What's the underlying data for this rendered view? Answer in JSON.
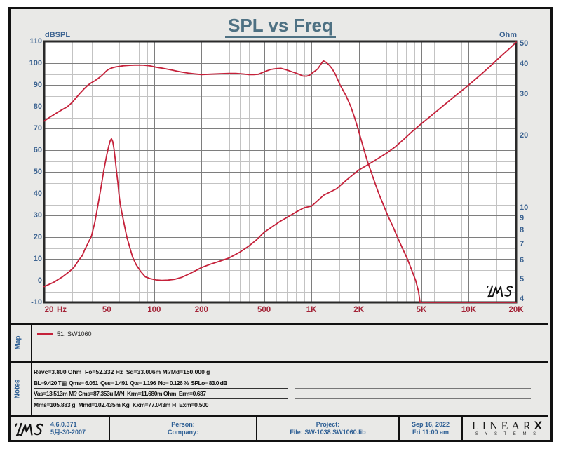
{
  "window": {
    "bg_color": "#e9e9e7",
    "border_color": "#111111",
    "plot_bg": "#ffffff"
  },
  "title": {
    "text": "SPL vs Freq",
    "color": "#4e7183"
  },
  "colors": {
    "curve_red": "#c5213a",
    "grid_major": "#7e7e7e",
    "grid_minor": "#c3c3c3",
    "axis_frame": "#2a2a2a",
    "y_label_blue": "#3c6391",
    "x_label_red": "#a32337",
    "footer_blue": "#2e5f94",
    "sidebar_blue": "#2e5f94"
  },
  "chart_data": {
    "type": "line",
    "title": "SPL vs Freq",
    "x_axis": {
      "unit": "Hz",
      "scale": "log",
      "min": 20,
      "max": 20000,
      "major_ticks": [
        20,
        50,
        100,
        200,
        500,
        1000,
        2000,
        5000,
        10000,
        20000
      ],
      "major_tick_labels": [
        "20",
        "50",
        "100",
        "200",
        "500",
        "1K",
        "2K",
        "5K",
        "10K",
        "20K"
      ],
      "unit_label": "Hz",
      "minor_ticks": [
        25,
        30,
        35,
        40,
        45,
        60,
        70,
        80,
        90,
        150,
        250,
        300,
        350,
        400,
        450,
        600,
        700,
        800,
        900,
        1500,
        2500,
        3000,
        3500,
        4000,
        4500,
        6000,
        7000,
        8000,
        9000,
        15000
      ]
    },
    "y_left_axis": {
      "label": "dBSPL",
      "scale": "linear",
      "min": -10,
      "max": 110,
      "major_step": 10,
      "minor_step": 5,
      "tick_labels": [
        "110",
        "100",
        "90",
        "80",
        "70",
        "60",
        "50",
        "40",
        "30",
        "20",
        "10",
        "0",
        "-10"
      ]
    },
    "y_right_axis": {
      "label": "Ohm",
      "scale": "log",
      "min": 4,
      "max": 50,
      "ticks": [
        50,
        40,
        30,
        20,
        10,
        9,
        8,
        7,
        6,
        5,
        4
      ],
      "tick_labels": [
        "50",
        "40",
        "30",
        "20",
        "10",
        "9",
        "8",
        "7",
        "6",
        "5",
        "4"
      ]
    },
    "grid": {
      "major_on": true,
      "minor_on": true
    },
    "legend_position": "map-section-below-chart",
    "watermark": "LMS",
    "series": [
      {
        "name": "51: SW1060 SPL",
        "axis": "left",
        "unit": "dBSPL",
        "color": "#c5213a",
        "points": [
          [
            20,
            73.4
          ],
          [
            22,
            75.4
          ],
          [
            24,
            77.1
          ],
          [
            26,
            78.6
          ],
          [
            28,
            79.9
          ],
          [
            30,
            81.8
          ],
          [
            32,
            84.2
          ],
          [
            34,
            86.4
          ],
          [
            36,
            88.3
          ],
          [
            38,
            89.9
          ],
          [
            40,
            91.0
          ],
          [
            42,
            91.9
          ],
          [
            44,
            92.9
          ],
          [
            46,
            94.0
          ],
          [
            48,
            95.3
          ],
          [
            49.5,
            96.3
          ],
          [
            51,
            97.0
          ],
          [
            52.5,
            97.45
          ],
          [
            54,
            97.8
          ],
          [
            57,
            98.25
          ],
          [
            60,
            98.5
          ],
          [
            64,
            98.8
          ],
          [
            70,
            99.0
          ],
          [
            75,
            99.1
          ],
          [
            80,
            99.1
          ],
          [
            85,
            99.05
          ],
          [
            90,
            98.9
          ],
          [
            95,
            98.7
          ],
          [
            100,
            98.3
          ],
          [
            110,
            97.8
          ],
          [
            120,
            97.3
          ],
          [
            130,
            96.8
          ],
          [
            140,
            96.3
          ],
          [
            150,
            95.9
          ],
          [
            165,
            95.4
          ],
          [
            180,
            95.05
          ],
          [
            200,
            94.75
          ],
          [
            230,
            94.95
          ],
          [
            260,
            95.1
          ],
          [
            300,
            95.3
          ],
          [
            330,
            95.3
          ],
          [
            370,
            95.0
          ],
          [
            400,
            94.7
          ],
          [
            430,
            94.7
          ],
          [
            460,
            94.9
          ],
          [
            500,
            96.0
          ],
          [
            550,
            97.1
          ],
          [
            600,
            97.5
          ],
          [
            640,
            97.6
          ],
          [
            700,
            96.8
          ],
          [
            760,
            95.9
          ],
          [
            800,
            95.4
          ],
          [
            850,
            94.6
          ],
          [
            880,
            94.1
          ],
          [
            930,
            94.0
          ],
          [
            970,
            94.4
          ],
          [
            1000,
            95.2
          ],
          [
            1050,
            96.3
          ],
          [
            1100,
            97.5
          ],
          [
            1150,
            99.6
          ],
          [
            1190,
            101.05
          ],
          [
            1240,
            100.4
          ],
          [
            1300,
            99.0
          ],
          [
            1355,
            97.4
          ],
          [
            1410,
            95.3
          ],
          [
            1520,
            90.0
          ],
          [
            1660,
            85.0
          ],
          [
            1780,
            80.0
          ],
          [
            1880,
            75.0
          ],
          [
            1975,
            70.0
          ],
          [
            2065,
            65.0
          ],
          [
            2160,
            60.0
          ],
          [
            2265,
            55.0
          ],
          [
            2395,
            50.0
          ],
          [
            2530,
            45.0
          ],
          [
            2680,
            40.0
          ],
          [
            2860,
            35.0
          ],
          [
            3050,
            30.0
          ],
          [
            3290,
            25.0
          ],
          [
            3520,
            20.0
          ],
          [
            3780,
            15.0
          ],
          [
            4070,
            10.0
          ],
          [
            4330,
            5.0
          ],
          [
            4600,
            0.0
          ],
          [
            4790,
            -5.0
          ],
          [
            4900,
            -10.0
          ],
          [
            20000,
            -10.0
          ]
        ]
      },
      {
        "name": "51: SW1060 impedance",
        "axis": "right",
        "unit": "Ohm",
        "color": "#c5213a",
        "points": [
          [
            20,
            4.66
          ],
          [
            23,
            4.86
          ],
          [
            26,
            5.11
          ],
          [
            29,
            5.4
          ],
          [
            31,
            5.63
          ],
          [
            33,
            5.99
          ],
          [
            35,
            6.3
          ],
          [
            36,
            6.6
          ],
          [
            38,
            7.1
          ],
          [
            40,
            7.6
          ],
          [
            42,
            8.7
          ],
          [
            44,
            10.3
          ],
          [
            46,
            12.2
          ],
          [
            48,
            14.5
          ],
          [
            50,
            16.7
          ],
          [
            51.5,
            18.2
          ],
          [
            52.7,
            19.2
          ],
          [
            53.6,
            19.5
          ],
          [
            54.5,
            19.0
          ],
          [
            55.5,
            17.8
          ],
          [
            56.5,
            16.1
          ],
          [
            57.7,
            14.15
          ],
          [
            58.8,
            12.74
          ],
          [
            59.7,
            11.48
          ],
          [
            60.9,
            10.33
          ],
          [
            62.8,
            9.3
          ],
          [
            64.9,
            8.36
          ],
          [
            67.1,
            7.52
          ],
          [
            70,
            6.8
          ],
          [
            73,
            6.2
          ],
          [
            77,
            5.75
          ],
          [
            82,
            5.4
          ],
          [
            88,
            5.12
          ],
          [
            95,
            5.03
          ],
          [
            103,
            4.97
          ],
          [
            112,
            4.95
          ],
          [
            122,
            4.96
          ],
          [
            135,
            5.0
          ],
          [
            150,
            5.1
          ],
          [
            170,
            5.3
          ],
          [
            200,
            5.6
          ],
          [
            230,
            5.8
          ],
          [
            260,
            5.95
          ],
          [
            300,
            6.15
          ],
          [
            350,
            6.5
          ],
          [
            400,
            6.9
          ],
          [
            450,
            7.35
          ],
          [
            500,
            7.88
          ],
          [
            560,
            8.3
          ],
          [
            630,
            8.75
          ],
          [
            700,
            9.1
          ],
          [
            800,
            9.6
          ],
          [
            900,
            10.0
          ],
          [
            1000,
            10.15
          ],
          [
            1200,
            11.3
          ],
          [
            1440,
            12.0
          ],
          [
            1700,
            13.2
          ],
          [
            2000,
            14.4
          ],
          [
            2300,
            15.2
          ],
          [
            2650,
            16.1
          ],
          [
            3000,
            16.95
          ],
          [
            3400,
            18.0
          ],
          [
            3900,
            19.5
          ],
          [
            4400,
            21.0
          ],
          [
            5000,
            22.55
          ],
          [
            5700,
            24.2
          ],
          [
            6500,
            26.0
          ],
          [
            7400,
            27.9
          ],
          [
            8400,
            29.9
          ],
          [
            9500,
            31.9
          ],
          [
            10700,
            34.1
          ],
          [
            12000,
            36.4
          ],
          [
            13500,
            39.0
          ],
          [
            15200,
            42.0
          ],
          [
            17000,
            44.9
          ],
          [
            18500,
            47.2
          ],
          [
            20000,
            49.6
          ]
        ]
      }
    ]
  },
  "map_section": {
    "sidebar_label": "Map",
    "legend": [
      {
        "swatch_color": "#c5213a",
        "label": "51: SW1060"
      }
    ]
  },
  "notes_section": {
    "sidebar_label": "Notes",
    "lines": [
      "Revc=3.800 Ohm  Fo=52.332 Hz  Sd=33.006m M?Md=150.000 g",
      "BL=9.420 T▦  Qms= 6.051  Qes= 1.491  Qts= 1.196  No= 0.126 %  SPLo= 83.0 dB",
      "Vas=13.513m M? Cms=87.353u M/N  Krm=11.680m Ohm  Erm=0.687",
      "Mms=105.883 g  Mmd=102.435m Kg  Kxm=77.043m H  Exm=0.500"
    ]
  },
  "footer": {
    "logo_text": "LMS",
    "version": "4.6.0.371",
    "version_date": "5月-30-2007",
    "person_label": "Person:",
    "company_label": "Company:",
    "project_label": "Project:",
    "file_label": "File: SW-1038 SW1060.lib",
    "date": "Sep 16, 2022",
    "time": "Fri 11:00 am",
    "brand_name": "LINEAR",
    "brand_x": "X",
    "brand_sub": "S Y S T E M S"
  }
}
